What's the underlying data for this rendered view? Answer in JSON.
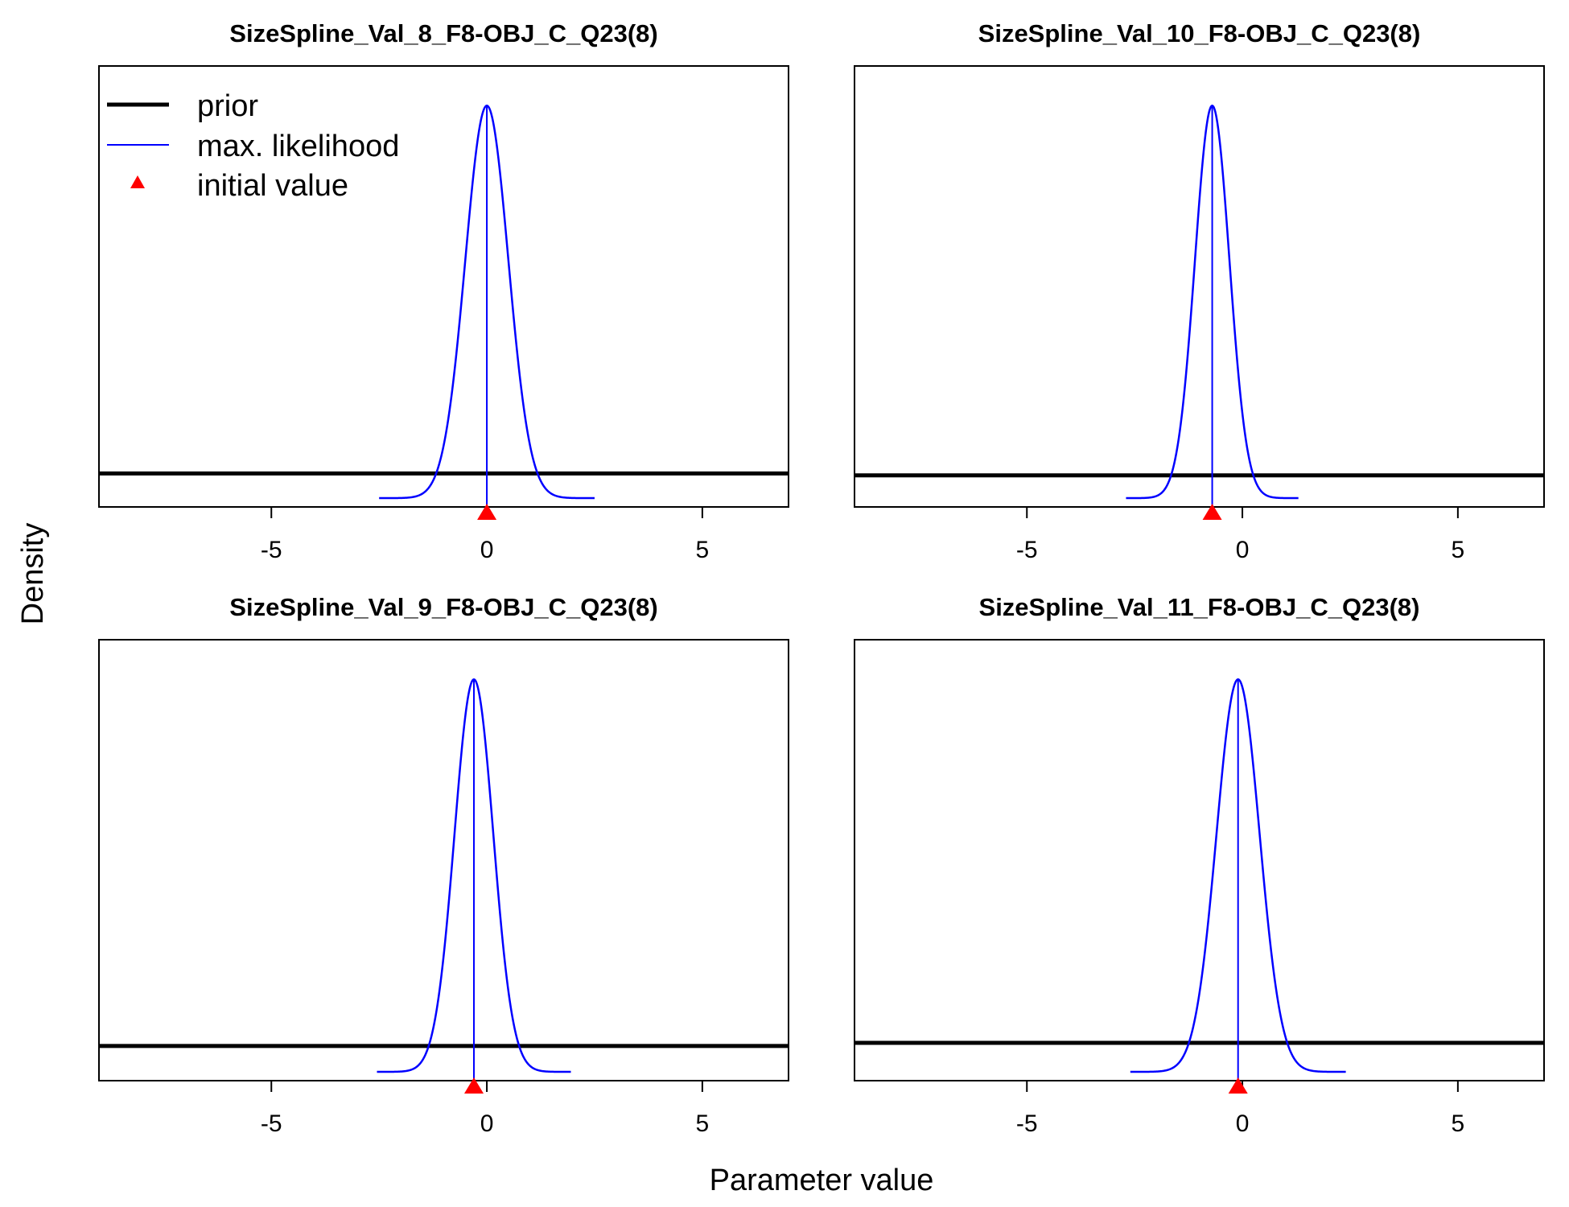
{
  "figure": {
    "xlabel": "Parameter value",
    "ylabel": "Density"
  },
  "legend": {
    "placement": "top-left of first panel",
    "items": [
      {
        "label": "prior",
        "color": "#000000",
        "kind": "line-thick"
      },
      {
        "label": "max. likelihood",
        "color": "#0000ff",
        "kind": "line-thin"
      },
      {
        "label": "initial value",
        "color": "#ff0000",
        "kind": "triangle"
      }
    ]
  },
  "chart_data": [
    {
      "type": "line",
      "title": "SizeSpline_Val_8_F8-OBJ_C_Q23(8)",
      "xlim": [
        -9,
        7
      ],
      "xticks": [
        -5,
        0,
        5
      ],
      "series": [
        {
          "name": "prior",
          "kind": "flat",
          "level": 0.063,
          "color": "#000000"
        },
        {
          "name": "max. likelihood",
          "kind": "normal",
          "mean": 0.0,
          "sd": 0.5,
          "peak": 1.0,
          "color": "#0000ff"
        }
      ],
      "initial_value": 0.0
    },
    {
      "type": "line",
      "title": "SizeSpline_Val_10_F8-OBJ_C_Q23(8)",
      "xlim": [
        -9,
        7
      ],
      "xticks": [
        -5,
        0,
        5
      ],
      "series": [
        {
          "name": "prior",
          "kind": "flat",
          "level": 0.058,
          "color": "#000000"
        },
        {
          "name": "max. likelihood",
          "kind": "normal",
          "mean": -0.7,
          "sd": 0.4,
          "peak": 1.0,
          "color": "#0000ff"
        }
      ],
      "initial_value": -0.7
    },
    {
      "type": "line",
      "title": "SizeSpline_Val_9_F8-OBJ_C_Q23(8)",
      "xlim": [
        -9,
        7
      ],
      "xticks": [
        -5,
        0,
        5
      ],
      "series": [
        {
          "name": "prior",
          "kind": "flat",
          "level": 0.066,
          "color": "#000000"
        },
        {
          "name": "max. likelihood",
          "kind": "normal",
          "mean": -0.3,
          "sd": 0.45,
          "peak": 1.0,
          "color": "#0000ff"
        }
      ],
      "initial_value": -0.3
    },
    {
      "type": "line",
      "title": "SizeSpline_Val_11_F8-OBJ_C_Q23(8)",
      "xlim": [
        -9,
        7
      ],
      "xticks": [
        -5,
        0,
        5
      ],
      "series": [
        {
          "name": "prior",
          "kind": "flat",
          "level": 0.074,
          "color": "#000000"
        },
        {
          "name": "max. likelihood",
          "kind": "normal",
          "mean": -0.1,
          "sd": 0.5,
          "peak": 1.0,
          "color": "#0000ff"
        }
      ],
      "initial_value": -0.1
    }
  ]
}
